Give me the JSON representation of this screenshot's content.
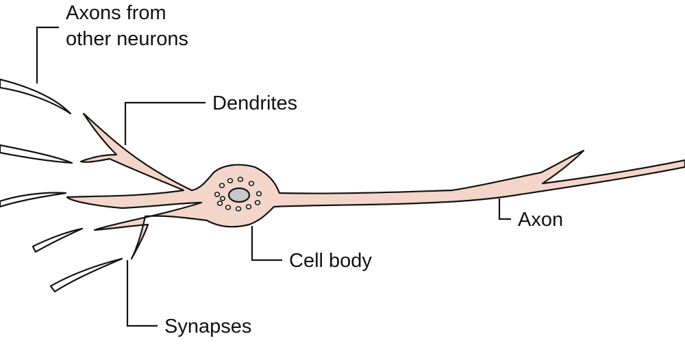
{
  "labels": {
    "axons_line1": "Axons from",
    "axons_line2": "other neurons",
    "dendrites": "Dendrites",
    "axon": "Axon",
    "cell_body": "Cell body",
    "synapses": "Synapses"
  },
  "colors": {
    "neuron_fill": "#F3D6C9",
    "nucleus_fill": "#C8C8C8",
    "outline": "#111111",
    "background": "#FFFFFF"
  }
}
